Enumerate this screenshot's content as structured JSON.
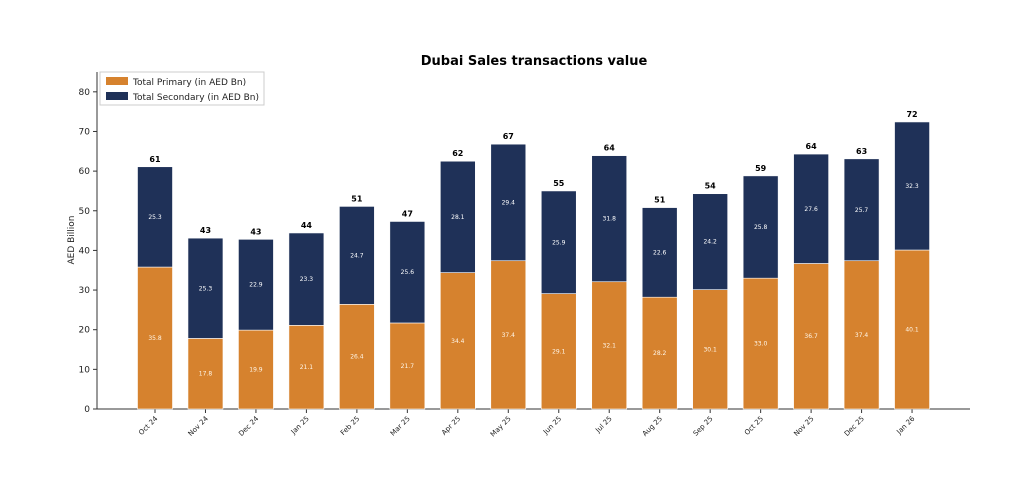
{
  "chart_data": {
    "type": "bar",
    "stacked": true,
    "title": "Dubai Sales transactions value",
    "xlabel": "",
    "ylabel": "AED Billion",
    "ylim": [
      0,
      85
    ],
    "yticks": [
      "0",
      "10",
      "20",
      "30",
      "40",
      "50",
      "60",
      "70",
      "80"
    ],
    "grid": false,
    "legend_position": "top-left",
    "categories": [
      "Oct 24",
      "Nov 24",
      "Dec 24",
      "Jan 25",
      "Feb 25",
      "Mar 25",
      "Apr 25",
      "May 25",
      "Jun 25",
      "Jul 25",
      "Aug 25",
      "Sep 25",
      "Oct 25",
      "Nov 25",
      "Dec 25",
      "Jan 26"
    ],
    "series": [
      {
        "name": "Total Primary (in AED Bn)",
        "color": "#d6822e",
        "values": [
          35.8,
          17.8,
          19.9,
          21.1,
          26.4,
          21.7,
          34.4,
          37.4,
          29.1,
          32.1,
          28.2,
          30.1,
          33.0,
          36.7,
          37.4,
          40.1
        ],
        "labels": [
          "35.8",
          "17.8",
          "19.9",
          "21.1",
          "26.4",
          "21.7",
          "34.4",
          "37.4",
          "29.1",
          "32.1",
          "28.2",
          "30.1",
          "33.0",
          "36.7",
          "37.4",
          "40.1"
        ]
      },
      {
        "name": "Total Secondary (in AED Bn)",
        "color": "#1f3158",
        "values": [
          25.3,
          25.3,
          22.9,
          23.3,
          24.7,
          25.6,
          28.1,
          29.4,
          25.9,
          31.8,
          22.6,
          24.2,
          25.8,
          27.6,
          25.7,
          32.3
        ],
        "labels": [
          "25.3",
          "25.3",
          "22.9",
          "23.3",
          "24.7",
          "25.6",
          "28.1",
          "29.4",
          "25.9",
          "31.8",
          "22.6",
          "24.2",
          "25.8",
          "27.6",
          "25.7",
          "32.3"
        ]
      }
    ],
    "totals": [
      "61",
      "43",
      "43",
      "44",
      "51",
      "47",
      "62",
      "67",
      "55",
      "64",
      "51",
      "54",
      "59",
      "64",
      "63",
      "72"
    ]
  }
}
